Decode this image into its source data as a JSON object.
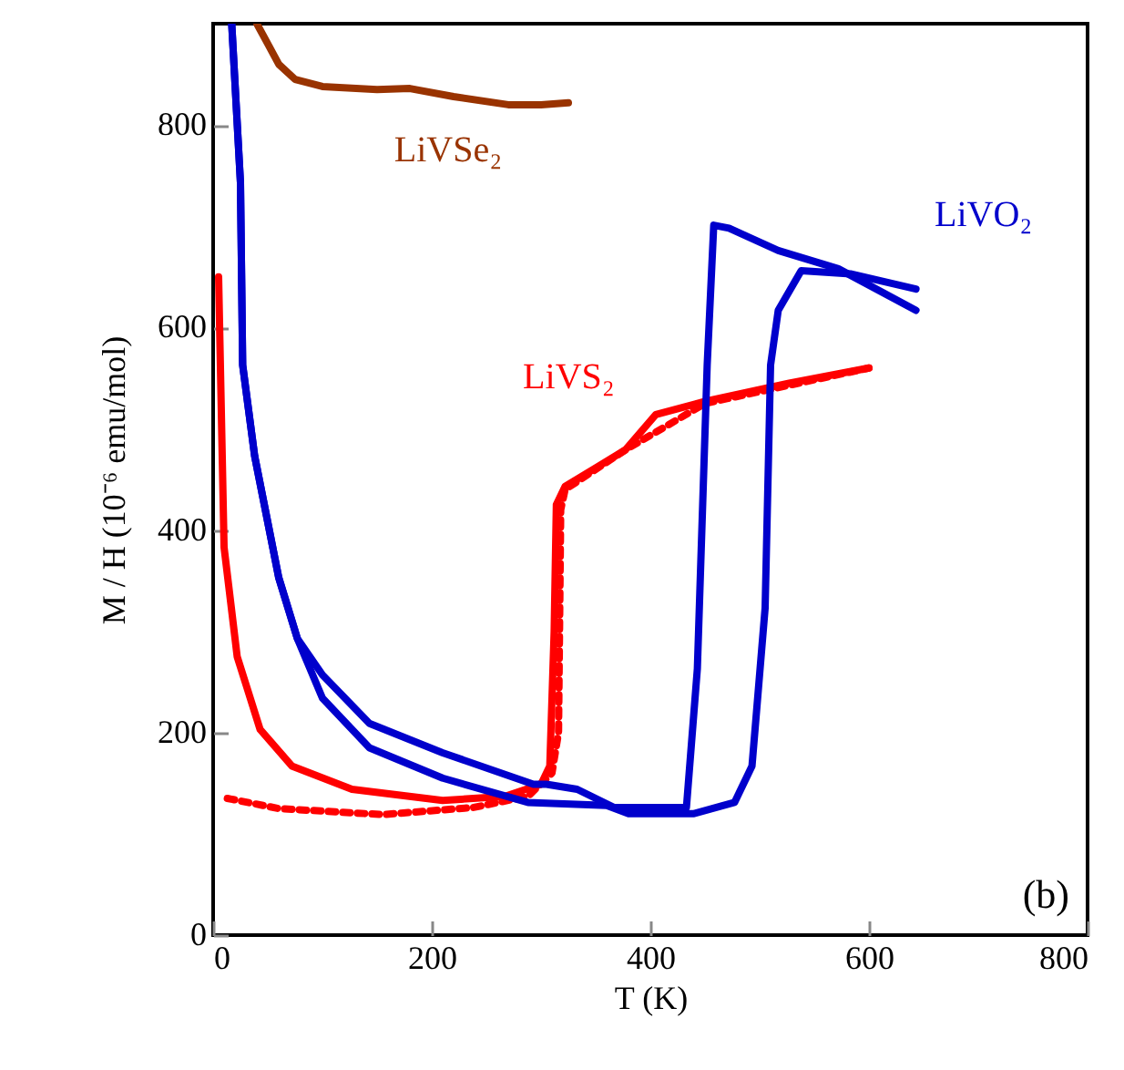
{
  "chart_data": {
    "type": "line",
    "xlabel": "T (K)",
    "ylabel": "M / H  (10⁻⁶ emu/mol)",
    "xlim": [
      0,
      800
    ],
    "ylim": [
      0,
      900
    ],
    "xticks": [
      0,
      200,
      400,
      600,
      800
    ],
    "yticks": [
      0,
      200,
      400,
      600,
      800
    ],
    "annotations": [
      "(b)"
    ],
    "series": [
      {
        "name": "LiVSe₂",
        "color": "#993300",
        "x": [
          40,
          50,
          60,
          75,
          100,
          150,
          180,
          220,
          270,
          300,
          325
        ],
        "values": [
          900,
          880,
          860,
          845,
          838,
          835,
          836,
          828,
          820,
          820,
          822
        ]
      },
      {
        "name": "LiVS₂",
        "color": "#ff0000",
        "x": [
          5,
          10,
          22,
          43,
          72,
          127,
          210,
          267,
          300,
          308,
          312,
          314,
          322,
          377,
          405,
          450,
          527,
          600
        ],
        "values": [
          650,
          383,
          275,
          203,
          167,
          144,
          133,
          137,
          149,
          167,
          300,
          425,
          443,
          479,
          514,
          527,
          545,
          560
        ]
      },
      {
        "color": "#ff0000",
        "line_style": "dotted",
        "x": [
          13,
          60,
          155,
          238,
          288,
          310,
          316,
          318,
          322,
          377,
          450,
          527,
          600
        ],
        "values": [
          135,
          125,
          119,
          126,
          137,
          160,
          200,
          420,
          440,
          479,
          525,
          543,
          560
        ]
      },
      {
        "name": "LiVO₂",
        "color": "#0000cc",
        "x": [
          17,
          25,
          27,
          38,
          60,
          77,
          100,
          143,
          210,
          293,
          305,
          333,
          367,
          433,
          443,
          452,
          458,
          472,
          517,
          572,
          643
        ],
        "values": [
          900,
          743,
          563,
          473,
          353,
          293,
          257,
          209,
          180,
          149,
          149,
          144,
          126,
          126,
          263,
          563,
          701,
          698,
          676,
          658,
          617
        ]
      },
      {
        "color": "#0000cc",
        "x": [
          17,
          25,
          27,
          38,
          60,
          77,
          100,
          143,
          210,
          288,
          360,
          380,
          440,
          477,
          493,
          505,
          510,
          517,
          538,
          583,
          643
        ],
        "values": [
          900,
          743,
          563,
          473,
          353,
          293,
          234,
          185,
          155,
          131,
          128,
          120,
          120,
          131,
          167,
          323,
          563,
          617,
          656,
          653,
          638
        ]
      }
    ]
  }
}
